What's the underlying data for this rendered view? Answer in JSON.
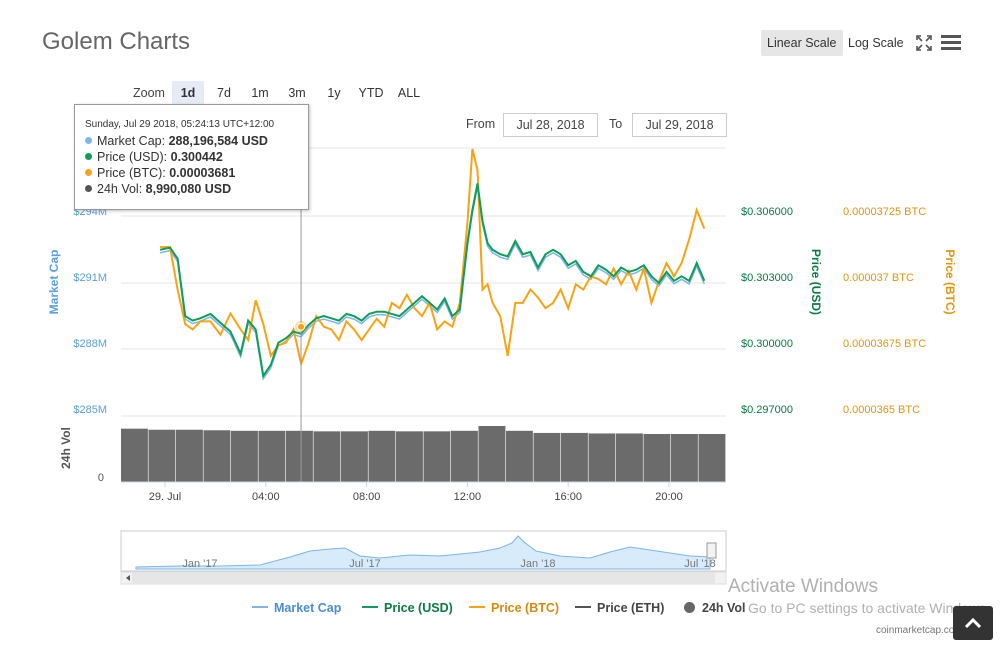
{
  "header": {
    "title": "Golem Charts",
    "linear_label": "Linear Scale",
    "log_label": "Log Scale"
  },
  "zoom": {
    "label": "Zoom",
    "buttons": [
      "1d",
      "7d",
      "1m",
      "3m",
      "1y",
      "YTD",
      "ALL"
    ],
    "active": "1d"
  },
  "range": {
    "from_label": "From",
    "from_value": "Jul 28, 2018",
    "to_label": "To",
    "to_value": "Jul 29, 2018"
  },
  "tooltip": {
    "date": "Sunday, Jul 29 2018, 05:24:13 UTC+12:00",
    "rows": [
      {
        "label": "Market Cap:",
        "value": "288,196,584 USD",
        "color": "#7cb5ec"
      },
      {
        "label": "Price (USD):",
        "value": "0.300442",
        "color": "#0f9d58"
      },
      {
        "label": "Price (BTC):",
        "value": "0.00003681",
        "color": "#f7a313"
      },
      {
        "label": "24h Vol:",
        "value": "8,990,080 USD",
        "color": "#555555"
      }
    ]
  },
  "chart_data": {
    "type": "line",
    "x_tick_labels": [
      "29. Jul",
      "04:00",
      "08:00",
      "12:00",
      "16:00",
      "20:00"
    ],
    "x_ticks_hours": [
      0,
      4,
      8,
      12,
      16,
      20
    ],
    "y_left": {
      "label": "Market Cap",
      "ticks": [
        "$294M",
        "$291M",
        "$288M",
        "$285M"
      ],
      "range": [
        285,
        294
      ]
    },
    "y_usd": {
      "label": "Price (USD)",
      "ticks": [
        "$0.306000",
        "$0.303000",
        "$0.300000",
        "$0.297000"
      ],
      "range": [
        0.297,
        0.306
      ]
    },
    "y_btc": {
      "label": "Price (BTC)",
      "ticks": [
        "0.00003725 BTC",
        "0.000037 BTC",
        "0.00003675 BTC",
        "0.0000365 BTC"
      ],
      "range": [
        3.65e-05,
        3.725e-05
      ]
    },
    "vol_axis": {
      "label": "24h Vol",
      "ticks": [
        "0"
      ]
    },
    "colors": {
      "market_cap": "#7cb5ec",
      "usd": "#0f9d58",
      "btc": "#f7a313",
      "vol": "#6b6b6b",
      "eth": "#555555"
    },
    "hours": [
      -0.2,
      0.2,
      0.5,
      0.8,
      1.1,
      1.4,
      1.8,
      2.2,
      2.6,
      3.0,
      3.3,
      3.6,
      3.9,
      4.2,
      4.5,
      4.8,
      5.1,
      5.4,
      5.7,
      6.0,
      6.3,
      6.6,
      6.9,
      7.2,
      7.5,
      7.8,
      8.1,
      8.4,
      8.7,
      9.0,
      9.3,
      9.6,
      9.9,
      10.2,
      10.5,
      10.8,
      11.1,
      11.4,
      11.7,
      12.0,
      12.2,
      12.4,
      12.6,
      12.8,
      13.0,
      13.3,
      13.6,
      13.9,
      14.2,
      14.5,
      14.8,
      15.1,
      15.4,
      15.7,
      16.0,
      16.3,
      16.6,
      16.9,
      17.2,
      17.5,
      17.8,
      18.1,
      18.4,
      18.7,
      19.0,
      19.3,
      19.6,
      19.9,
      20.2,
      20.5,
      20.8,
      21.1,
      21.4
    ],
    "price_usd": [
      0.3042,
      0.3043,
      0.3038,
      0.3012,
      0.301,
      0.3011,
      0.3013,
      0.3009,
      0.3005,
      0.2995,
      0.301,
      0.3006,
      0.2985,
      0.299,
      0.3,
      0.3002,
      0.3005,
      0.3004,
      0.3008,
      0.3011,
      0.3012,
      0.3011,
      0.301,
      0.3013,
      0.3012,
      0.301,
      0.3013,
      0.3014,
      0.3014,
      0.3013,
      0.3012,
      0.3015,
      0.3018,
      0.3021,
      0.3018,
      0.3015,
      0.302,
      0.3012,
      0.3015,
      0.3045,
      0.306,
      0.3072,
      0.3055,
      0.3045,
      0.3042,
      0.304,
      0.3039,
      0.3046,
      0.304,
      0.3041,
      0.3034,
      0.304,
      0.3042,
      0.304,
      0.3035,
      0.3037,
      0.3032,
      0.303,
      0.3035,
      0.3033,
      0.303,
      0.3034,
      0.3032,
      0.3033,
      0.3035,
      0.303,
      0.3027,
      0.3032,
      0.3028,
      0.303,
      0.3028,
      0.3036,
      0.3028
    ],
    "price_btc": [
      3.711e-05,
      3.711e-05,
      3.695e-05,
      3.682e-05,
      3.68e-05,
      3.683e-05,
      3.683e-05,
      3.678e-05,
      3.686e-05,
      3.68e-05,
      3.676e-05,
      3.691e-05,
      3.682e-05,
      3.67e-05,
      3.674e-05,
      3.675e-05,
      3.68e-05,
      3.667e-05,
      3.675e-05,
      3.685e-05,
      3.681e-05,
      3.68e-05,
      3.676e-05,
      3.683e-05,
      3.68e-05,
      3.676e-05,
      3.68e-05,
      3.684e-05,
      3.681e-05,
      3.69e-05,
      3.688e-05,
      3.693e-05,
      3.688e-05,
      3.685e-05,
      3.69e-05,
      3.68e-05,
      3.683e-05,
      3.681e-05,
      3.69e-05,
      3.72e-05,
      3.748e-05,
      3.74e-05,
      3.695e-05,
      3.697e-05,
      3.69e-05,
      3.685e-05,
      3.67e-05,
      3.69e-05,
      3.69e-05,
      3.695e-05,
      3.692e-05,
      3.688e-05,
      3.69e-05,
      3.695e-05,
      3.688e-05,
      3.697e-05,
      3.695e-05,
      3.7e-05,
      3.699e-05,
      3.697e-05,
      3.703e-05,
      3.697e-05,
      3.702e-05,
      3.695e-05,
      3.703e-05,
      3.69e-05,
      3.698e-05,
      3.705e-05,
      3.7e-05,
      3.705e-05,
      3.714e-05,
      3.725e-05,
      3.718e-05
    ],
    "vol_levels": [
      1.0,
      0.98,
      0.98,
      0.97,
      0.96,
      0.96,
      0.96,
      0.95,
      0.95,
      0.96,
      0.95,
      0.95,
      0.96,
      1.05,
      0.96,
      0.92,
      0.92,
      0.91,
      0.91,
      0.9,
      0.9,
      0.9
    ],
    "navigator_ticks": [
      "Jan '17",
      "Jul '17",
      "Jan '18",
      "Jul '18"
    ],
    "legend": [
      "Market Cap",
      "Price (USD)",
      "Price (BTC)",
      "Price (ETH)",
      "24h Vol"
    ]
  },
  "watermark": {
    "title": "Activate Windows",
    "subtitle": "Go to PC settings to activate Windows."
  },
  "credit": "coinmarketcap.com"
}
